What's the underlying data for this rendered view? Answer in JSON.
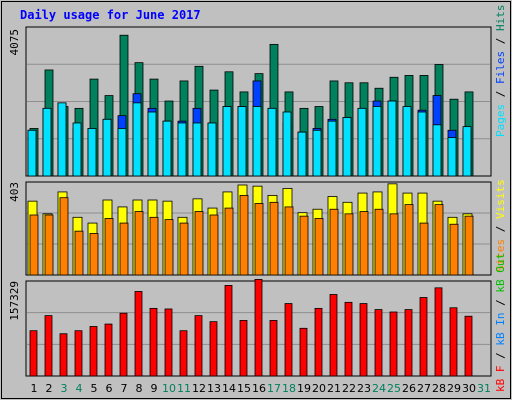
{
  "title": "Daily usage for June 2017",
  "colors": {
    "background": "#C0C0C0",
    "panel": "#C0C0C0",
    "border": "#000000",
    "grid": "#8E8E8E",
    "hits": "#00805C",
    "files": "#0040FF",
    "pages": "#00E0FF",
    "visits": "#FFFF00",
    "sites": "#FF8000",
    "kbf": "#FF0000",
    "kbin": "#0080FF",
    "kbout": "#00C000",
    "title": "#0000FF",
    "axis_text": "#000000",
    "weekend_day": "#00805C"
  },
  "legend": {
    "top": {
      "pages": "Pages",
      "slash1": " / ",
      "files": "Files",
      "slash2": " / ",
      "hits": "Hits"
    },
    "middle": {
      "sites": "Sites",
      "slash1": " / ",
      "visits": "Visits"
    },
    "bottom": {
      "kbf": "kB F",
      "slash1": " / ",
      "kbin": "kB In",
      "slash2": " / ",
      "kbout": "kB Out"
    }
  },
  "chart_data": [
    {
      "type": "bar",
      "title": "Daily usage for June 2017",
      "x": [
        1,
        2,
        3,
        4,
        5,
        6,
        7,
        8,
        9,
        10,
        11,
        12,
        13,
        14,
        15,
        16,
        17,
        18,
        19,
        20,
        21,
        22,
        23,
        24,
        25,
        26,
        27,
        28,
        29,
        30,
        31
      ],
      "ylabel": "4075",
      "ylim": [
        0,
        4075
      ],
      "series": [
        {
          "name": "Hits",
          "color": "#00805C",
          "values": [
            1300,
            2900,
            1900,
            1850,
            2650,
            2200,
            3850,
            3100,
            2650,
            2050,
            2600,
            3000,
            2350,
            2850,
            2300,
            2800,
            3600,
            2300,
            1850,
            1900,
            2600,
            2550,
            2550,
            2400,
            2700,
            2750,
            2750,
            3050,
            2100,
            2300,
            0
          ]
        },
        {
          "name": "Files",
          "color": "#0040FF",
          "values": [
            1250,
            1850,
            2000,
            1300,
            1300,
            1550,
            1650,
            2250,
            1850,
            1500,
            1500,
            1850,
            1450,
            1900,
            1900,
            2600,
            1850,
            1450,
            1200,
            1300,
            1550,
            1600,
            1850,
            2050,
            2050,
            1850,
            1800,
            2200,
            1250,
            1250,
            0
          ]
        },
        {
          "name": "Pages",
          "color": "#00E0FF",
          "values": [
            1250,
            1850,
            2000,
            1450,
            1300,
            1550,
            1300,
            2000,
            1750,
            1500,
            1450,
            1450,
            1450,
            1900,
            1900,
            1900,
            1850,
            1750,
            1200,
            1250,
            1500,
            1600,
            1850,
            1900,
            2050,
            1900,
            1750,
            1400,
            1050,
            1350,
            0
          ]
        }
      ],
      "xlim": [
        1,
        31
      ]
    },
    {
      "type": "bar",
      "x": [
        1,
        2,
        3,
        4,
        5,
        6,
        7,
        8,
        9,
        10,
        11,
        12,
        13,
        14,
        15,
        16,
        17,
        18,
        19,
        20,
        21,
        22,
        23,
        24,
        25,
        26,
        27,
        28,
        29,
        30,
        31
      ],
      "ylabel": "403",
      "ylim": [
        0,
        403
      ],
      "series": [
        {
          "name": "Visits",
          "color": "#FFFF00",
          "values": [
            320,
            265,
            360,
            250,
            225,
            325,
            295,
            325,
            325,
            320,
            250,
            330,
            290,
            360,
            390,
            385,
            345,
            375,
            270,
            285,
            340,
            315,
            355,
            360,
            395,
            355,
            355,
            320,
            250,
            265,
            0
          ]
        },
        {
          "name": "Sites",
          "color": "#FF8000",
          "values": [
            260,
            260,
            335,
            190,
            180,
            245,
            225,
            275,
            250,
            240,
            225,
            275,
            260,
            290,
            345,
            310,
            315,
            295,
            255,
            245,
            285,
            265,
            275,
            285,
            265,
            305,
            225,
            305,
            220,
            255,
            0
          ]
        }
      ]
    },
    {
      "type": "bar",
      "x": [
        1,
        2,
        3,
        4,
        5,
        6,
        7,
        8,
        9,
        10,
        11,
        12,
        13,
        14,
        15,
        16,
        17,
        18,
        19,
        20,
        21,
        22,
        23,
        24,
        25,
        26,
        27,
        28,
        29,
        30,
        31
      ],
      "ylabel": "157329",
      "ylim": [
        0,
        157329
      ],
      "series": [
        {
          "name": "kB F",
          "color": "#FF0000",
          "values": [
            75000,
            100000,
            70000,
            75000,
            82000,
            86000,
            104000,
            140000,
            112000,
            111000,
            75000,
            100000,
            90000,
            150000,
            92000,
            160000,
            92000,
            120000,
            79000,
            112000,
            135000,
            122000,
            120000,
            110000,
            106000,
            110000,
            130000,
            146000,
            113000,
            99000,
            0
          ]
        },
        {
          "name": "kB In",
          "color": "#0080FF",
          "values": [
            0,
            0,
            0,
            0,
            0,
            0,
            0,
            0,
            0,
            0,
            0,
            0,
            0,
            0,
            0,
            0,
            0,
            0,
            0,
            0,
            0,
            0,
            0,
            0,
            0,
            0,
            0,
            0,
            0,
            0,
            0
          ]
        },
        {
          "name": "kB Out",
          "color": "#00C000",
          "values": [
            0,
            0,
            0,
            0,
            0,
            0,
            0,
            0,
            0,
            0,
            0,
            0,
            0,
            0,
            0,
            0,
            0,
            0,
            0,
            0,
            0,
            0,
            0,
            0,
            0,
            0,
            0,
            0,
            0,
            0,
            0
          ]
        }
      ]
    }
  ],
  "x_axis": {
    "days": [
      "1",
      "2",
      "3",
      "4",
      "5",
      "6",
      "7",
      "8",
      "9",
      "10",
      "11",
      "12",
      "13",
      "14",
      "15",
      "16",
      "17",
      "18",
      "19",
      "20",
      "21",
      "22",
      "23",
      "24",
      "25",
      "26",
      "27",
      "28",
      "29",
      "30",
      "31"
    ],
    "weekend_days": [
      3,
      4,
      10,
      11,
      17,
      18,
      24,
      25,
      31
    ]
  }
}
